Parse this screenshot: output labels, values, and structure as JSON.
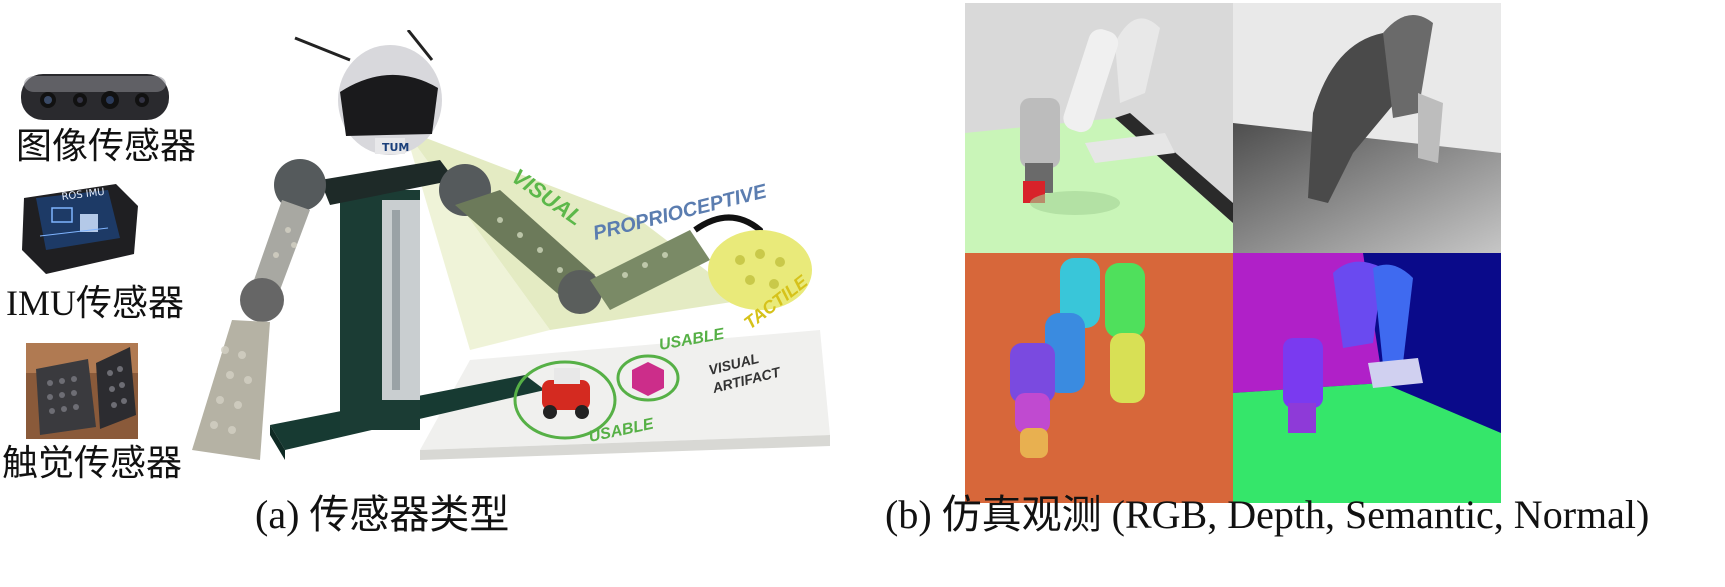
{
  "figure": {
    "left_panel": {
      "sensors": [
        {
          "label": "图像传感器",
          "icon": "depth-camera-icon"
        },
        {
          "label": "IMU传感器",
          "icon": "imu-module-icon",
          "device_text": "ROS IMU"
        },
        {
          "label": "触觉传感器",
          "icon": "tactile-sensor-icon"
        }
      ],
      "scene": {
        "head_logo": "TUM",
        "stage_labels": {
          "visual": "VISUAL",
          "proprioceptive": "PROPRIOCEPTIVE",
          "tactile": "TACTILE",
          "usable_top": "USABLE",
          "usable_bottom": "USABLE",
          "visual_artifact_line1": "VISUAL",
          "visual_artifact_line2": "ARTIFACT"
        }
      },
      "caption": "(a) 传感器类型"
    },
    "right_panel": {
      "views": [
        "RGB",
        "Depth",
        "Semantic",
        "Normal"
      ],
      "caption": "(b) 仿真观测 (RGB, Depth, Semantic, Normal)"
    }
  },
  "colors": {
    "semantic_bg": "#d7673a",
    "normal_bg": "#0a0a8a",
    "normal_wall": "#b020c8",
    "normal_floor": "#35e66a",
    "rgb_floor": "#c9f5b8",
    "cone_green": "#dfe8b8"
  }
}
